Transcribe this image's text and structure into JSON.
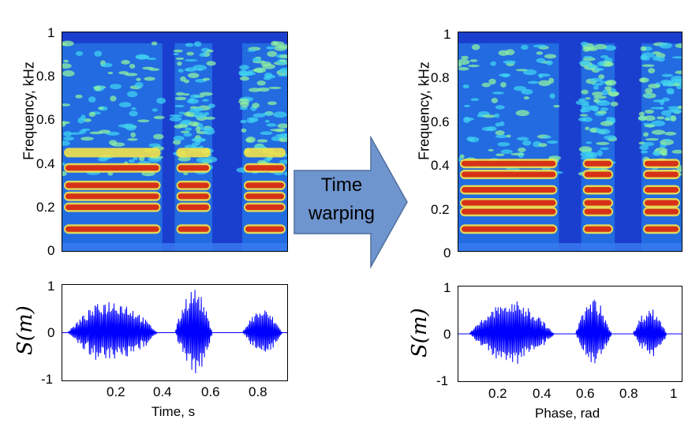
{
  "arrow": {
    "label_line1": "Time",
    "label_line2": "warping",
    "fill": "#6f95cf",
    "stroke": "#4f6f9f"
  },
  "left_panel": {
    "spectrogram": {
      "ylabel": "Frequency, kHz",
      "yticks": [
        "0",
        "0.2",
        "0.4",
        "0.6",
        "0.8",
        "1"
      ]
    },
    "waveform": {
      "ylabel": "S(m)",
      "yticks": [
        "-1",
        "0",
        "1"
      ],
      "xticks": [
        "0.2",
        "0.4",
        "0.6",
        "0.8"
      ],
      "xlabel": "Time, s"
    }
  },
  "right_panel": {
    "spectrogram": {
      "ylabel": "Frequency, kHz",
      "yticks": [
        "0",
        "0.2",
        "0.4",
        "0.6",
        "0.8",
        "1"
      ]
    },
    "waveform": {
      "ylabel": "S(m)",
      "yticks": [
        "-1",
        "0",
        "1"
      ],
      "xticks": [
        "0.2",
        "0.4",
        "0.6",
        "0.8",
        "1"
      ],
      "xlabel": "Phase, rad"
    }
  },
  "colors": {
    "wave": "#0000ff",
    "spec_low": "#0a1fb5",
    "spec_high": "#b30000"
  },
  "chart_data": [
    {
      "type": "heatmap",
      "title": "",
      "xlabel": "",
      "ylabel": "Frequency, kHz",
      "ylim": [
        0,
        1
      ],
      "speech_segments": [
        [
          0.0,
          0.4
        ],
        [
          0.45,
          0.6
        ],
        [
          0.72,
          0.9
        ]
      ],
      "formant_bands_kHz": [
        0.1,
        0.2,
        0.25,
        0.3,
        0.38,
        0.45
      ]
    },
    {
      "type": "line",
      "xlabel": "Time, s",
      "ylabel": "S(m)",
      "xlim": [
        0,
        0.9
      ],
      "ylim": [
        -1,
        1
      ],
      "bursts": [
        {
          "start": 0.02,
          "end": 0.38,
          "peak": 0.7
        },
        {
          "start": 0.45,
          "end": 0.6,
          "peak": 0.95
        },
        {
          "start": 0.72,
          "end": 0.88,
          "peak": 0.5
        }
      ]
    },
    {
      "type": "heatmap",
      "title": "",
      "xlabel": "",
      "ylabel": "Frequency, kHz",
      "ylim": [
        0,
        1
      ],
      "speech_segments": [
        [
          0.0,
          0.45
        ],
        [
          0.55,
          0.7
        ],
        [
          0.82,
          1.0
        ]
      ],
      "formant_bands_kHz": [
        0.1,
        0.18,
        0.22,
        0.28,
        0.35,
        0.4
      ]
    },
    {
      "type": "line",
      "xlabel": "Phase, rad",
      "ylabel": "S(m)",
      "xlim": [
        0,
        1.05
      ],
      "ylim": [
        -1,
        1
      ],
      "bursts": [
        {
          "start": 0.05,
          "end": 0.45,
          "peak": 0.7
        },
        {
          "start": 0.55,
          "end": 0.72,
          "peak": 0.75
        },
        {
          "start": 0.82,
          "end": 0.98,
          "peak": 0.55
        }
      ]
    }
  ]
}
